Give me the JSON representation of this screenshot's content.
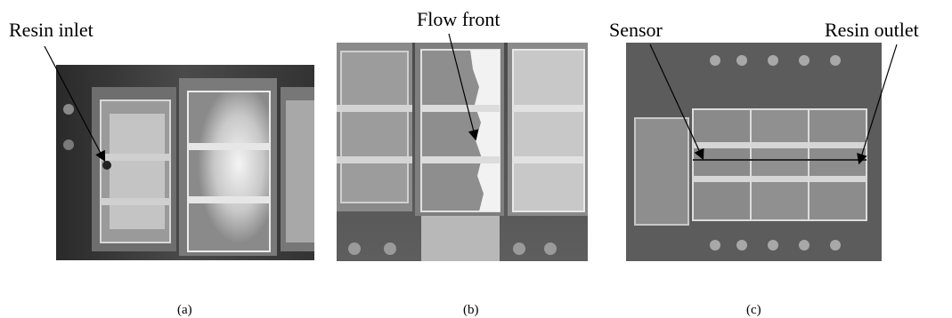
{
  "figure": {
    "annotations": {
      "resin_inlet": "Resin inlet",
      "flow_front": "Flow front",
      "sensor": "Sensor",
      "resin_outlet": "Resin outlet"
    },
    "captions": {
      "a": "(a)",
      "b": "(b)",
      "c": "(c)"
    }
  }
}
